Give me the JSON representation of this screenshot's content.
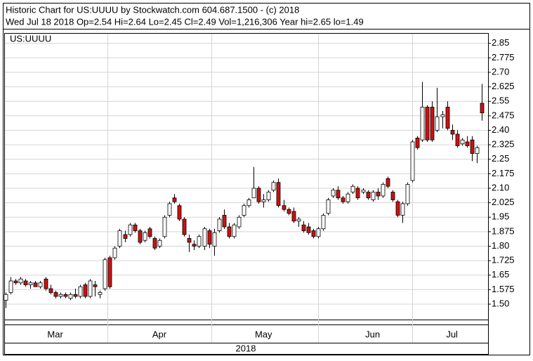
{
  "chart_data": {
    "type": "candlestick",
    "title": "Historic Chart for US:UUUU by Stockwatch.com 604.687.1500 - (c) 2018",
    "subtitle": "Wed Jul 18 2018   Op=2.54  Hi=2.64  Lo=2.45  Cl=2.49  Vol=1,216,306  Year hi=2.65  lo=1.49",
    "symbol": "US:UUUU",
    "year": "2018",
    "up_color": "#ffffff",
    "down_color": "#cc1111",
    "grid": true,
    "ylim": [
      1.42,
      2.9
    ],
    "yticks": [
      {
        "value": 1.5,
        "label": "1.50"
      },
      1.575,
      1.65,
      1.725,
      {
        "value": 1.8,
        "label": "1.80"
      },
      1.875,
      1.95,
      2.025,
      {
        "value": 2.1,
        "label": "2.10"
      },
      2.175,
      2.25,
      2.325,
      {
        "value": 2.4,
        "label": "2.40"
      },
      2.475,
      2.55,
      2.625,
      {
        "value": 2.7,
        "label": "2.70"
      },
      2.775,
      2.85
    ],
    "categories": [
      null,
      null,
      null,
      null,
      null,
      null,
      null,
      null,
      null,
      null,
      "Mar",
      null,
      null,
      null,
      null,
      null,
      null,
      null,
      null,
      null,
      null,
      null,
      null,
      null,
      null,
      null,
      null,
      null,
      null,
      null,
      null,
      "Apr",
      null,
      null,
      null,
      null,
      null,
      null,
      null,
      null,
      null,
      null,
      null,
      null,
      null,
      null,
      null,
      null,
      null,
      null,
      null,
      null,
      "May",
      null,
      null,
      null,
      null,
      null,
      null,
      null,
      null,
      null,
      null,
      null,
      null,
      null,
      null,
      null,
      null,
      null,
      null,
      null,
      null,
      null,
      "Jun",
      null,
      null,
      null,
      null,
      null,
      null,
      null,
      null,
      null,
      null,
      null,
      null,
      null,
      null,
      null,
      "Jul",
      null,
      null,
      null,
      null,
      null,
      null
    ],
    "open": [
      1.52,
      1.56,
      1.62,
      1.61,
      1.62,
      1.6,
      1.61,
      1.59,
      1.63,
      1.58,
      1.56,
      1.54,
      1.55,
      1.53,
      1.55,
      1.54,
      1.6,
      1.54,
      1.6,
      1.55,
      1.58,
      1.74,
      1.74,
      1.8,
      1.86,
      1.86,
      1.91,
      1.88,
      1.83,
      1.89,
      1.84,
      1.8,
      1.85,
      1.96,
      2.05,
      2.01,
      1.94,
      1.84,
      1.81,
      1.8,
      1.8,
      1.88,
      1.8,
      1.88,
      1.96,
      1.9,
      1.85,
      1.9,
      1.96,
      2.01,
      2.05,
      2.1,
      2.03,
      2.04,
      2.09,
      2.13,
      2.01,
      1.99,
      1.98,
      1.93,
      1.91,
      1.9,
      1.88,
      1.85,
      1.89,
      1.97,
      2.06,
      2.09,
      2.05,
      2.03,
      2.08,
      2.1,
      2.08,
      2.08,
      2.04,
      2.08,
      2.06,
      2.15,
      2.08,
      2.03,
      1.96,
      2.02,
      2.14,
      2.36,
      2.35,
      2.52,
      2.52,
      2.4,
      2.47,
      2.52,
      2.4,
      2.38,
      2.33,
      2.34,
      2.35,
      2.28,
      2.54
    ],
    "high": [
      1.56,
      1.64,
      1.63,
      1.64,
      1.63,
      1.62,
      1.62,
      1.62,
      1.64,
      1.6,
      1.57,
      1.56,
      1.56,
      1.56,
      1.58,
      1.6,
      1.61,
      1.63,
      1.62,
      1.57,
      1.74,
      1.75,
      1.8,
      1.89,
      1.88,
      1.92,
      1.92,
      1.89,
      1.88,
      1.9,
      1.85,
      1.84,
      1.96,
      2.03,
      2.07,
      2.02,
      1.95,
      1.86,
      1.83,
      1.86,
      1.9,
      1.89,
      1.89,
      1.95,
      1.99,
      1.92,
      1.92,
      1.96,
      2.02,
      2.05,
      2.21,
      2.11,
      2.07,
      2.09,
      2.14,
      2.15,
      2.04,
      2.0,
      2.0,
      1.95,
      1.93,
      1.92,
      1.89,
      1.9,
      1.97,
      2.05,
      2.1,
      2.11,
      2.06,
      2.08,
      2.12,
      2.11,
      2.1,
      2.09,
      2.09,
      2.1,
      2.13,
      2.16,
      2.09,
      2.04,
      2.03,
      2.13,
      2.35,
      2.37,
      2.65,
      2.53,
      2.55,
      2.62,
      2.5,
      2.55,
      2.43,
      2.4,
      2.36,
      2.37,
      2.37,
      2.32,
      2.64
    ],
    "low": [
      1.48,
      1.55,
      1.6,
      1.6,
      1.59,
      1.58,
      1.59,
      1.58,
      1.57,
      1.55,
      1.53,
      1.53,
      1.53,
      1.52,
      1.53,
      1.53,
      1.53,
      1.53,
      1.54,
      1.53,
      1.57,
      1.58,
      1.73,
      1.79,
      1.82,
      1.85,
      1.87,
      1.81,
      1.82,
      1.84,
      1.78,
      1.79,
      1.84,
      1.95,
      2.02,
      1.93,
      1.85,
      1.77,
      1.78,
      1.79,
      1.78,
      1.79,
      1.75,
      1.87,
      1.89,
      1.84,
      1.84,
      1.89,
      1.95,
      2.0,
      2.05,
      2.02,
      2.0,
      2.03,
      2.08,
      2.0,
      1.98,
      1.96,
      1.92,
      1.9,
      1.87,
      1.86,
      1.84,
      1.84,
      1.88,
      1.96,
      2.05,
      2.04,
      2.02,
      2.02,
      2.07,
      2.04,
      2.07,
      2.04,
      2.03,
      2.04,
      2.05,
      2.1,
      2.03,
      1.95,
      1.92,
      2.01,
      2.13,
      2.3,
      2.34,
      2.34,
      2.34,
      2.39,
      2.41,
      2.4,
      2.35,
      2.31,
      2.32,
      2.31,
      2.24,
      2.23,
      2.45
    ],
    "close": [
      1.55,
      1.62,
      1.61,
      1.63,
      1.6,
      1.61,
      1.59,
      1.61,
      1.58,
      1.56,
      1.54,
      1.55,
      1.54,
      1.55,
      1.54,
      1.59,
      1.54,
      1.62,
      1.59,
      1.56,
      1.73,
      1.59,
      1.79,
      1.88,
      1.84,
      1.91,
      1.88,
      1.82,
      1.87,
      1.85,
      1.79,
      1.83,
      1.95,
      2.02,
      2.03,
      1.94,
      1.86,
      1.82,
      1.8,
      1.85,
      1.89,
      1.81,
      1.87,
      1.94,
      1.9,
      1.85,
      1.91,
      1.95,
      2.01,
      2.04,
      2.1,
      2.03,
      2.04,
      2.08,
      2.13,
      2.01,
      1.99,
      1.97,
      1.93,
      1.94,
      1.88,
      1.87,
      1.85,
      1.89,
      1.96,
      2.04,
      2.09,
      2.05,
      2.03,
      2.07,
      2.11,
      2.05,
      2.09,
      2.05,
      2.08,
      2.06,
      2.12,
      2.11,
      2.04,
      1.96,
      2.02,
      2.12,
      2.34,
      2.31,
      2.52,
      2.35,
      2.35,
      2.47,
      2.48,
      2.41,
      2.38,
      2.32,
      2.35,
      2.32,
      2.28,
      2.31,
      2.49
    ]
  }
}
